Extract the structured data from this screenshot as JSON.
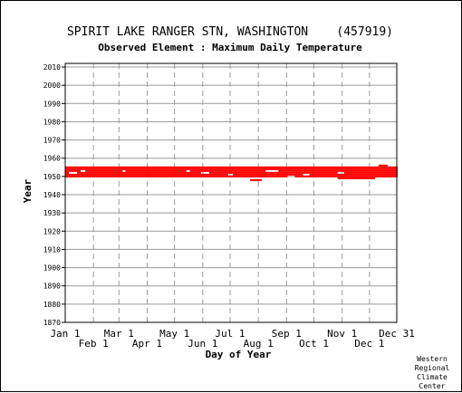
{
  "chart_data": {
    "type": "scatter",
    "title": "SPIRIT LAKE RANGER STN, WASHINGTON    (457919)",
    "subtitle": "Observed Element : Maximum Daily Temperature",
    "xlabel": "Day of Year",
    "ylabel": "Year",
    "xlim": [
      1,
      365
    ],
    "ylim": [
      1870,
      2012
    ],
    "y_ticks": [
      1870,
      1880,
      1890,
      1900,
      1910,
      1920,
      1930,
      1940,
      1950,
      1960,
      1970,
      1980,
      1990,
      2000,
      2010
    ],
    "x_ticks_upper": [
      {
        "label": "Jan 1",
        "day": 1
      },
      {
        "label": "Mar 1",
        "day": 60
      },
      {
        "label": "May 1",
        "day": 121
      },
      {
        "label": "Jul 1",
        "day": 182
      },
      {
        "label": "Sep 1",
        "day": 244
      },
      {
        "label": "Nov 1",
        "day": 305
      },
      {
        "label": "Dec 31",
        "day": 365
      }
    ],
    "x_ticks_lower": [
      {
        "label": "Feb 1",
        "day": 32
      },
      {
        "label": "Apr 1",
        "day": 91
      },
      {
        "label": "Jun 1",
        "day": 152
      },
      {
        "label": "Aug 1",
        "day": 213
      },
      {
        "label": "Oct 1",
        "day": 274
      },
      {
        "label": "Dec 1",
        "day": 335
      }
    ],
    "grid": true,
    "marker_color": "#ff0000",
    "observed_years": [
      1950,
      1951,
      1952,
      1953,
      1954,
      1955
    ],
    "observed_day_range": [
      1,
      365
    ],
    "observation_gaps": [
      {
        "year": 1953,
        "days": [
          18,
          22
        ]
      },
      {
        "year": 1953,
        "days": [
          64,
          66
        ]
      },
      {
        "year": 1953,
        "days": [
          134,
          137
        ]
      },
      {
        "year": 1953,
        "days": [
          221,
          234
        ]
      },
      {
        "year": 1952,
        "days": [
          5,
          13
        ]
      },
      {
        "year": 1952,
        "days": [
          150,
          158
        ]
      },
      {
        "year": 1952,
        "days": [
          300,
          306
        ]
      },
      {
        "year": 1951,
        "days": [
          180,
          184
        ]
      },
      {
        "year": 1951,
        "days": [
          262,
          268
        ]
      },
      {
        "year": 1950,
        "days": [
          245,
          252
        ]
      }
    ],
    "sparse_records": [
      {
        "year": 1948,
        "days": [
          204,
          216
        ]
      },
      {
        "year": 1949,
        "days": [
          300,
          340
        ]
      },
      {
        "year": 1956,
        "days": [
          345,
          354
        ]
      }
    ]
  },
  "credit": [
    "Western",
    "Regional",
    "Climate",
    "Center"
  ]
}
